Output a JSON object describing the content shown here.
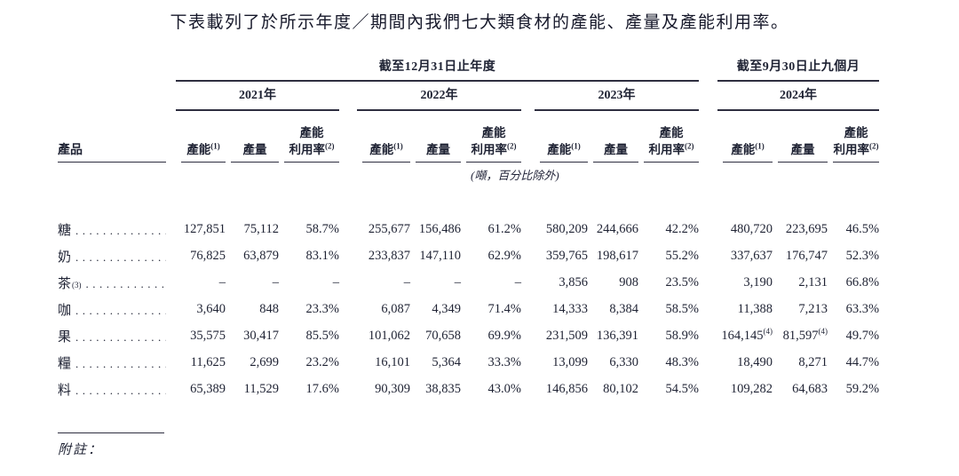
{
  "title": "下表載列了於所示年度／期間內我們七大類食材的產能、產量及產能利用率。",
  "table": {
    "group_headers": [
      {
        "label": "截至12月31日止年度"
      },
      {
        "label": "截至9月30日止九個月"
      }
    ],
    "years": [
      "2021年",
      "2022年",
      "2023年",
      "2024年"
    ],
    "product_header": "產品",
    "col_headers": {
      "capacity": "產能",
      "capacity_sup": "(1)",
      "output": "產量",
      "util_line1": "產能",
      "util_line2": "利用率",
      "util_sup": "(2)"
    },
    "unit_note": "(噸，百分比除外)",
    "rows": [
      {
        "product": "糖",
        "values": [
          "127,851",
          "75,112",
          "58.7%",
          "255,677",
          "156,486",
          "61.2%",
          "580,209",
          "244,666",
          "42.2%",
          "480,720",
          "223,695",
          "46.5%"
        ]
      },
      {
        "product": "奶",
        "values": [
          "76,825",
          "63,879",
          "83.1%",
          "233,837",
          "147,110",
          "62.9%",
          "359,765",
          "198,617",
          "55.2%",
          "337,637",
          "176,747",
          "52.3%"
        ]
      },
      {
        "product": "茶",
        "product_sup": "(3)",
        "values": [
          "–",
          "–",
          "–",
          "–",
          "–",
          "–",
          "3,856",
          "908",
          "23.5%",
          "3,190",
          "2,131",
          "66.8%"
        ]
      },
      {
        "product": "咖",
        "values": [
          "3,640",
          "848",
          "23.3%",
          "6,087",
          "4,349",
          "71.4%",
          "14,333",
          "8,384",
          "58.5%",
          "11,388",
          "7,213",
          "63.3%"
        ]
      },
      {
        "product": "果",
        "values": [
          "35,575",
          "30,417",
          "85.5%",
          "101,062",
          "70,658",
          "69.9%",
          "231,509",
          "136,391",
          "58.9%",
          {
            "v": "164,145",
            "sup": "(4)"
          },
          {
            "v": "81,597",
            "sup": "(4)"
          },
          "49.7%"
        ]
      },
      {
        "product": "糧",
        "values": [
          "11,625",
          "2,699",
          "23.2%",
          "16,101",
          "5,364",
          "33.3%",
          "13,099",
          "6,330",
          "48.3%",
          "18,490",
          "8,271",
          "44.7%"
        ]
      },
      {
        "product": "料",
        "values": [
          "65,389",
          "11,529",
          "17.6%",
          "90,309",
          "38,835",
          "43.0%",
          "146,856",
          "80,102",
          "54.5%",
          "109,282",
          "64,683",
          "59.2%"
        ]
      }
    ],
    "notes_label": "附註："
  }
}
